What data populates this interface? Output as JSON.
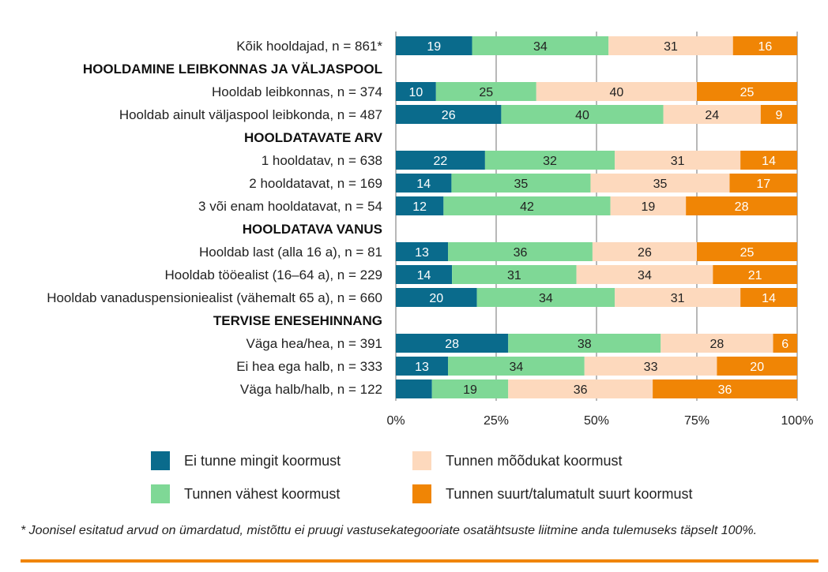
{
  "chart_data": {
    "type": "bar",
    "orientation": "horizontal",
    "stacked": true,
    "title": "",
    "xlabel": "",
    "ylabel": "",
    "xlim": [
      0,
      100
    ],
    "x_ticks": [
      "0%",
      "25%",
      "50%",
      "75%",
      "100%"
    ],
    "x_tick_values": [
      0,
      25,
      50,
      75,
      100
    ],
    "grid": true,
    "series": [
      {
        "name": "Ei tunne mingit koormust",
        "color": "#0a6b8c"
      },
      {
        "name": "Tunnen vähest koormust",
        "color": "#7fd896"
      },
      {
        "name": "Tunnen mõõdukat koormust",
        "color": "#fdd9bd"
      },
      {
        "name": "Tunnen suurt/talumatult suurt koormust",
        "color": "#f08505"
      }
    ],
    "rows": [
      {
        "kind": "bar",
        "label": "Kõik hooldajad, n = 861*",
        "values": [
          19,
          34,
          31,
          16
        ]
      },
      {
        "kind": "group",
        "label": "HOOLDAMINE LEIBKONNAS JA VÄLJASPOOL"
      },
      {
        "kind": "bar",
        "label": "Hooldab leibkonnas, n = 374",
        "values": [
          10,
          25,
          40,
          25
        ]
      },
      {
        "kind": "bar",
        "label": "Hooldab ainult väljaspool leibkonda, n = 487",
        "values": [
          26,
          40,
          24,
          9
        ]
      },
      {
        "kind": "group",
        "label": "HOOLDATAVATE ARV"
      },
      {
        "kind": "bar",
        "label": "1 hooldatav, n = 638",
        "values": [
          22,
          32,
          31,
          14
        ]
      },
      {
        "kind": "bar",
        "label": "2 hooldatavat, n = 169",
        "values": [
          14,
          35,
          35,
          17
        ]
      },
      {
        "kind": "bar",
        "label": "3 või enam hooldatavat, n = 54",
        "values": [
          12,
          42,
          19,
          28
        ]
      },
      {
        "kind": "group",
        "label": "HOOLDATAVA VANUS"
      },
      {
        "kind": "bar",
        "label": "Hooldab last (alla 16 a), n = 81",
        "values": [
          13,
          36,
          26,
          25
        ]
      },
      {
        "kind": "bar",
        "label": "Hooldab tööealist (16–64 a), n = 229",
        "values": [
          14,
          31,
          34,
          21
        ]
      },
      {
        "kind": "bar",
        "label": "Hooldab vanaduspensioniealist (vähemalt 65 a), n = 660",
        "values": [
          20,
          34,
          31,
          14
        ]
      },
      {
        "kind": "group",
        "label": "TERVISE ENESEHINNANG"
      },
      {
        "kind": "bar",
        "label": "Väga hea/hea, n = 391",
        "values": [
          28,
          38,
          28,
          6
        ]
      },
      {
        "kind": "bar",
        "label": "Ei hea ega halb, n = 333",
        "values": [
          13,
          34,
          33,
          20
        ]
      },
      {
        "kind": "bar",
        "label": "Väga halb/halb, n = 122",
        "values": [
          9,
          19,
          36,
          36
        ],
        "shown_labels": [
          null,
          19,
          36,
          36
        ]
      }
    ],
    "label_colors": {
      "dark_series": "#ffffff",
      "light_series": "#222222"
    },
    "gridline_color": "#888888"
  },
  "footnote": "* Joonisel esitatud arvud on ümardatud, mistõttu ei pruugi vastusekategooriate osatähtsuste liitmine anda tulemuseks täpselt 100%.",
  "rule_color": "#f08505"
}
